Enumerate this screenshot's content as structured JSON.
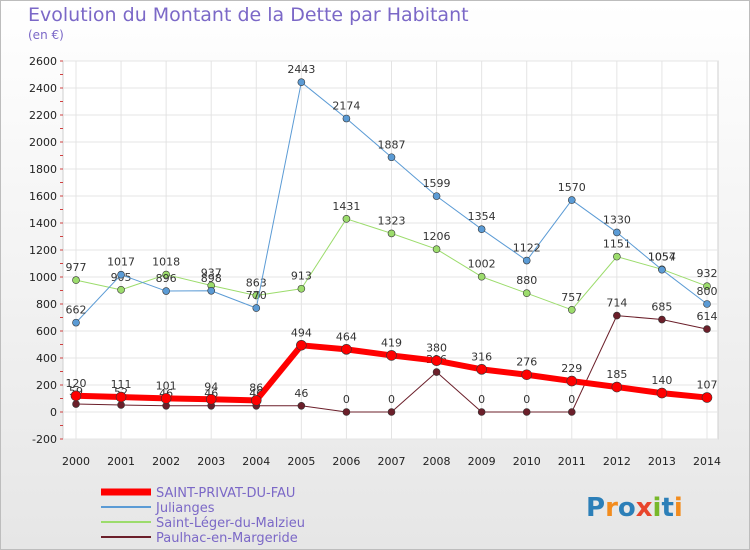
{
  "chart_data": {
    "type": "line",
    "title": "Evolution du Montant de la Dette par Habitant",
    "subtitle": "(en €)",
    "x": [
      "2000",
      "2001",
      "2002",
      "2003",
      "2004",
      "2005",
      "2006",
      "2007",
      "2008",
      "2009",
      "2010",
      "2011",
      "2012",
      "2013",
      "2014"
    ],
    "ylim": [
      -200,
      2600
    ],
    "yticks": [
      -200,
      0,
      200,
      400,
      600,
      800,
      1000,
      1200,
      1400,
      1600,
      1800,
      2000,
      2200,
      2400,
      2600
    ],
    "grid": true,
    "legend_position": "bottom-left",
    "series": [
      {
        "name": "Paulhac-en-Margeride",
        "color": "#6b1f2a",
        "width": 1,
        "values": [
          59,
          52,
          46,
          46,
          46,
          46,
          0,
          0,
          296,
          0,
          0,
          0,
          714,
          685,
          614
        ],
        "labels": [
          "59",
          "52",
          "46",
          "46",
          "46",
          "46",
          "0",
          "0",
          "296",
          "0",
          "0",
          "0",
          "714",
          "685",
          "614"
        ]
      },
      {
        "name": "Saint-Léger-du-Malzieu",
        "color": "#9cdc6c",
        "width": 1,
        "values": [
          977,
          905,
          1018,
          937,
          863,
          913,
          1431,
          1323,
          1206,
          1002,
          880,
          757,
          1151,
          1057,
          932
        ],
        "labels": [
          "977",
          "905",
          "1018",
          "937",
          "863",
          "913",
          "1431",
          "1323",
          "1206",
          "1002",
          "880",
          "757",
          "1151",
          "1057",
          "932"
        ]
      },
      {
        "name": "Julianges",
        "color": "#5b9bd5",
        "width": 1,
        "values": [
          662,
          1017,
          896,
          898,
          770,
          2443,
          2174,
          1887,
          1599,
          1354,
          1122,
          1570,
          1330,
          1054,
          800
        ],
        "labels": [
          "662",
          "1017",
          "896",
          "898",
          "770",
          "2443",
          "2174",
          "1887",
          "1599",
          "1354",
          "1122",
          "1570",
          "1330",
          "1054",
          "800"
        ]
      },
      {
        "name": "SAINT-PRIVAT-DU-FAU",
        "color": "#ff0000",
        "width": 6,
        "values": [
          120,
          111,
          101,
          94,
          86,
          494,
          464,
          419,
          380,
          316,
          276,
          229,
          185,
          140,
          107
        ],
        "labels": [
          "120",
          "111",
          "101",
          "94",
          "86",
          "494",
          "464",
          "419",
          "380",
          "316",
          "276",
          "229",
          "185",
          "140",
          "107"
        ]
      }
    ]
  },
  "legend": [
    {
      "name": "SAINT-PRIVAT-DU-FAU",
      "color": "#ff0000",
      "text_color": "#7b68c7",
      "thick": true
    },
    {
      "name": "Julianges",
      "color": "#5b9bd5",
      "text_color": "#7b68c7",
      "thick": false
    },
    {
      "name": "Saint-Léger-du-Malzieu",
      "color": "#9cdc6c",
      "text_color": "#7b68c7",
      "thick": false
    },
    {
      "name": "Paulhac-en-Margeride",
      "color": "#6b1f2a",
      "text_color": "#7b68c7",
      "thick": false
    }
  ],
  "logo": {
    "text": "Proxiti"
  }
}
